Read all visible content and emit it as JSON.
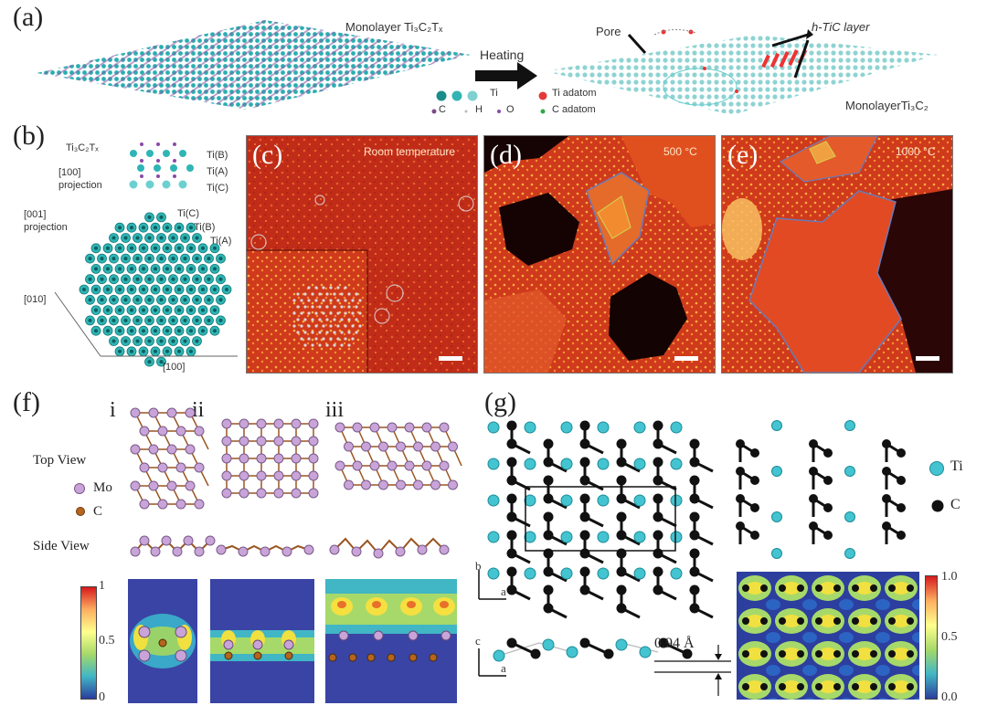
{
  "panel_a": {
    "label": "(a)",
    "left_caption": "Monolayer Ti₃C₂Tₓ",
    "arrow_label": "Heating",
    "pore_label": "Pore",
    "layer_label": "h-TiC layer",
    "right_caption": "MonolayerTi₃C₂",
    "legend": {
      "ti": "Ti",
      "c": "C",
      "h": "H",
      "o": "O",
      "ti_adatom": "Ti adatom",
      "c_adatom": "C adatom"
    }
  },
  "panel_b": {
    "label": "(b)",
    "formula": "Ti₃C₂Tₓ",
    "proj100": "[100]\nprojection",
    "tib": "Ti(B)",
    "tia": "Ti(A)",
    "tic": "Ti(C)",
    "proj001": "[001]\nprojection",
    "tic2": "Ti(C)",
    "tib2": "Ti(B)",
    "tia2": "Ti(A)",
    "axis010": "[010]",
    "axis100": "[100]"
  },
  "panel_c": {
    "label": "(c)",
    "caption": "Room temperature"
  },
  "panel_d": {
    "label": "(d)",
    "caption": "500 °C"
  },
  "panel_e": {
    "label": "(e)",
    "caption": "1000 °C"
  },
  "panel_f": {
    "label": "(f)",
    "col_i": "i",
    "col_ii": "ii",
    "col_iii": "iii",
    "top_view": "Top View",
    "side_view": "Side View",
    "legend_mo": "Mo",
    "legend_c": "C",
    "cbar_max": "1",
    "cbar_mid": "0.5",
    "cbar_min": "0"
  },
  "panel_g": {
    "label": "(g)",
    "legend_ti": "Ti",
    "legend_c": "C",
    "axis_b": "b",
    "axis_a": "a",
    "axis_c": "c",
    "axis_a2": "a",
    "distance": "0.94 Å",
    "cbar_max": "1.0",
    "cbar_mid": "0.5",
    "cbar_min": "0.0"
  },
  "colors": {
    "teal": "#2fb5b5",
    "tem_orange": "#d8401c",
    "tem_dark": "#1a0404",
    "mo": "#c9a4d8",
    "carbon": "#222222"
  }
}
